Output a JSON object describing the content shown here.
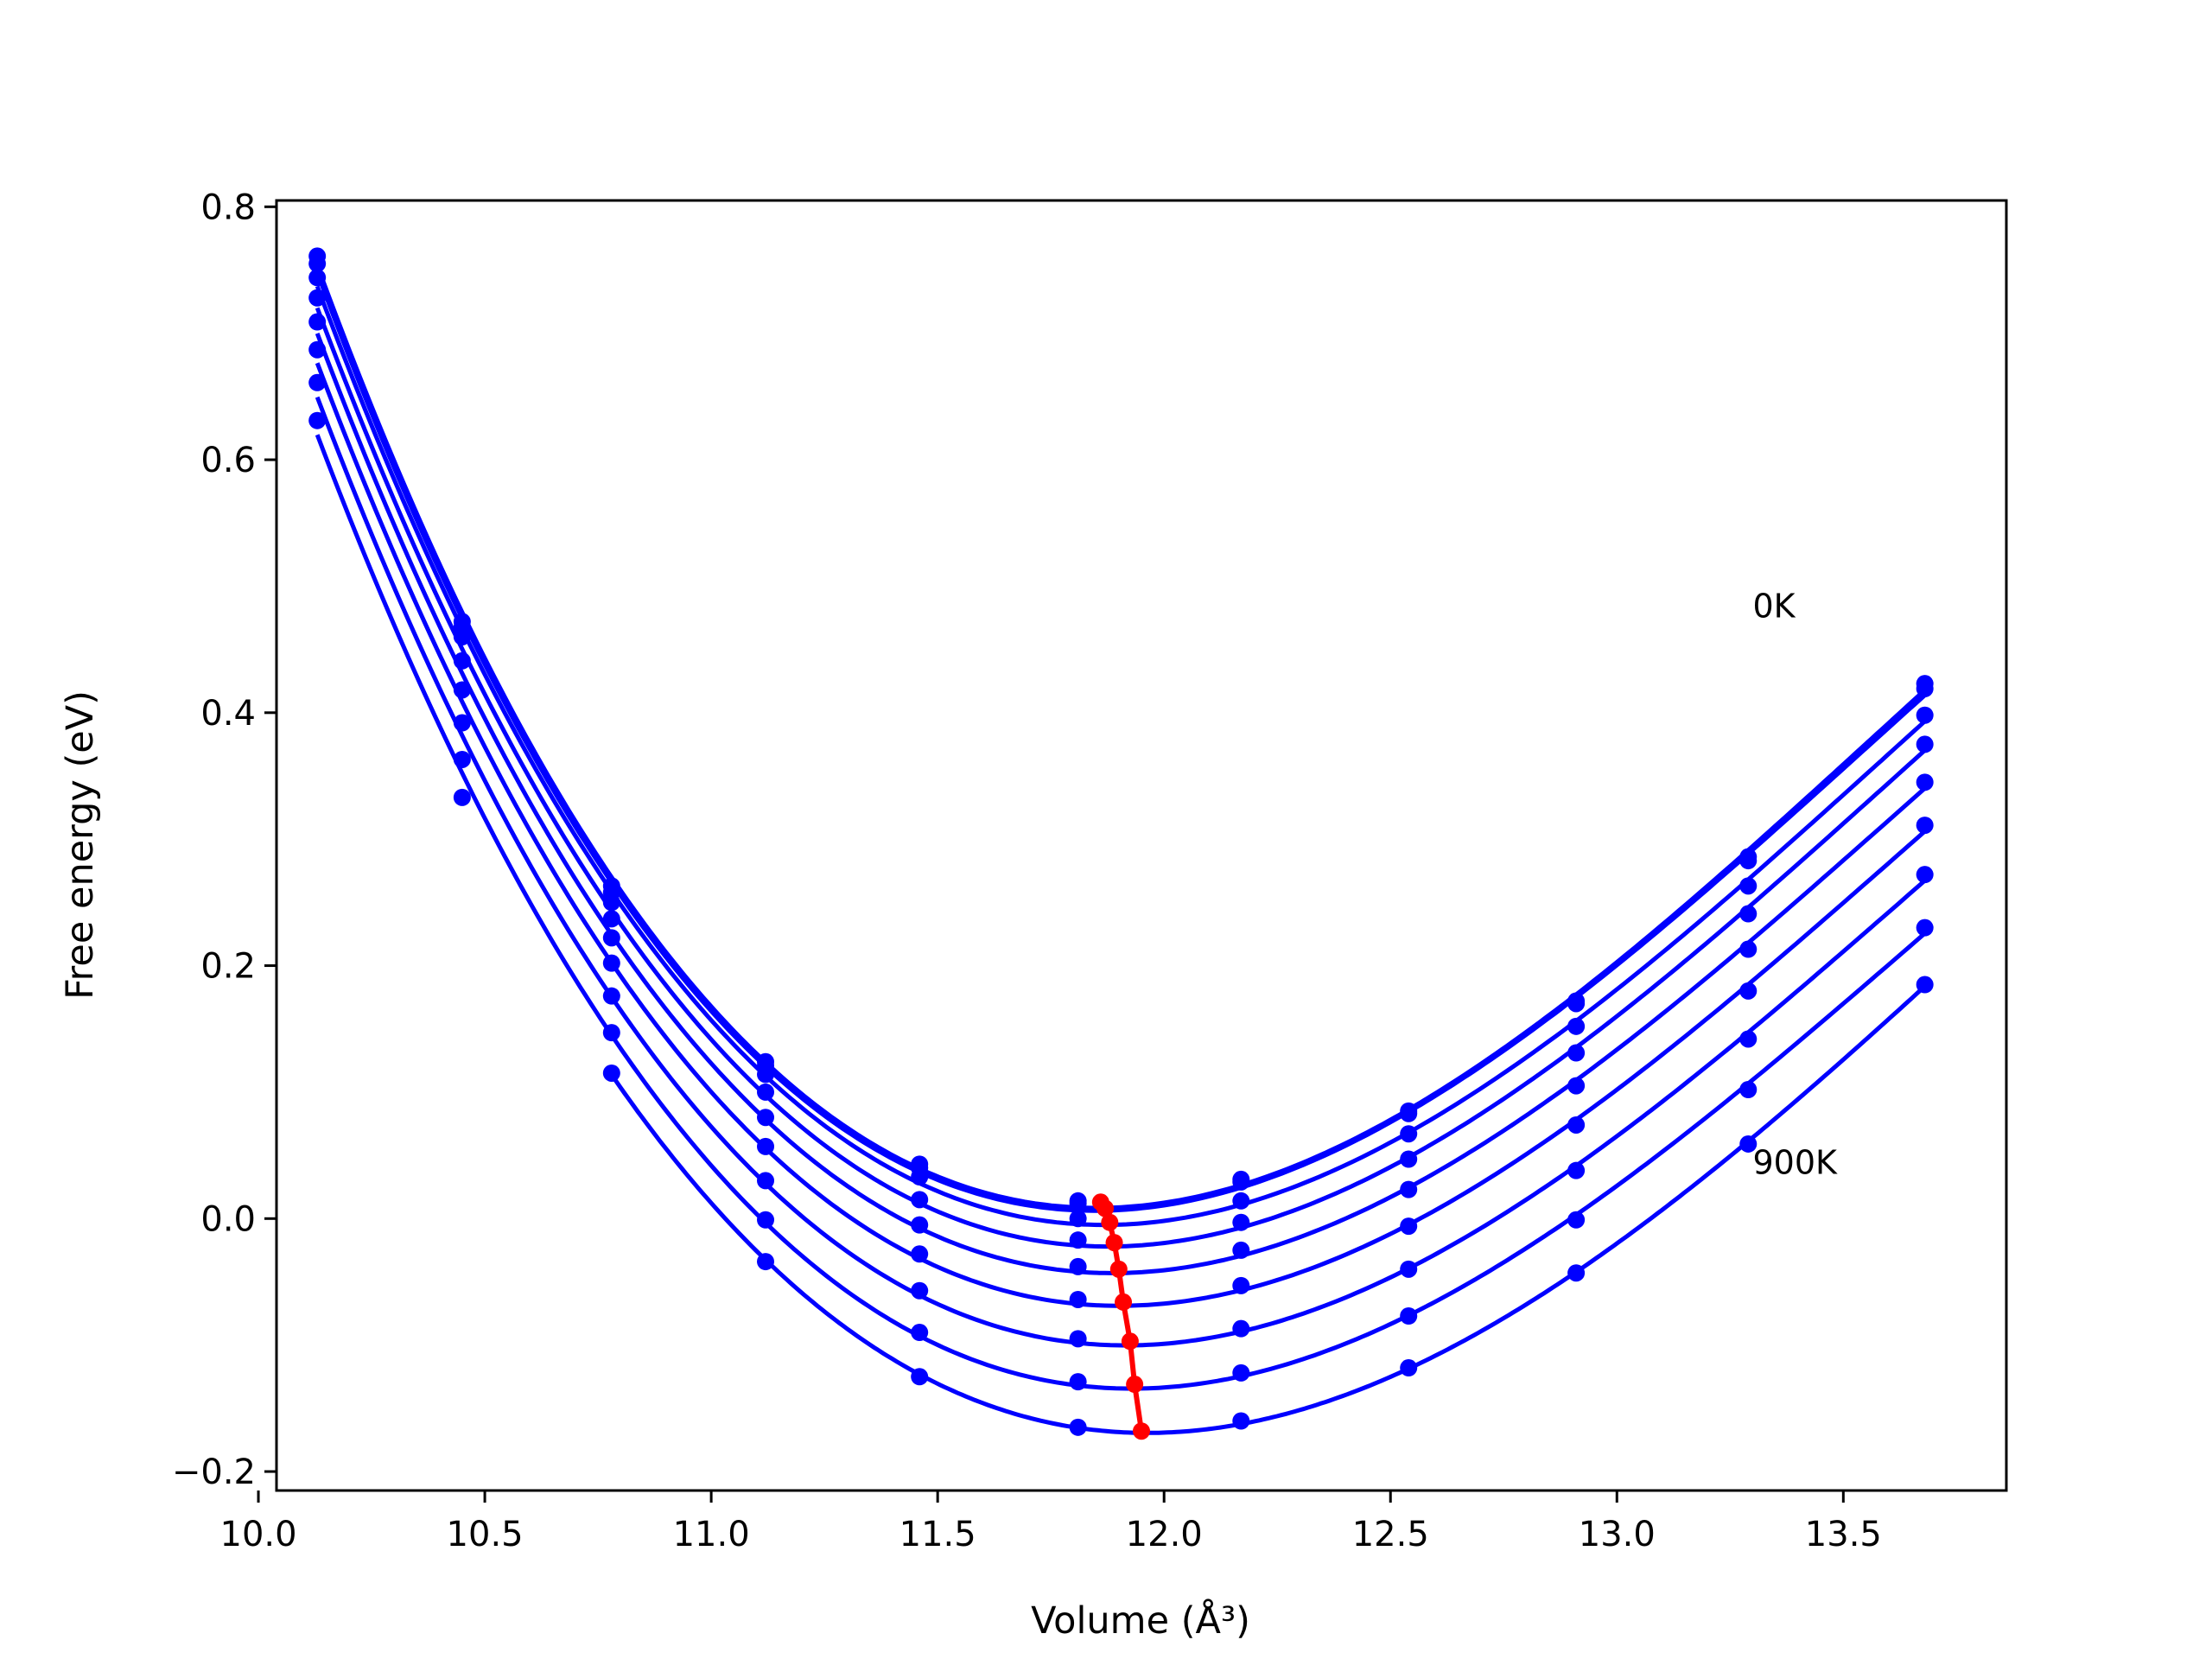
{
  "chart_data": {
    "type": "line",
    "title": "",
    "xlabel": "Volume (Å³)",
    "ylabel": "Free energy (eV)",
    "xlim": [
      10.04,
      13.86
    ],
    "ylim": [
      -0.215,
      0.805
    ],
    "xticks": [
      10.0,
      10.5,
      11.0,
      11.5,
      12.0,
      12.5,
      13.0,
      13.5
    ],
    "xtick_labels": [
      "10.0",
      "10.5",
      "11.0",
      "11.5",
      "12.0",
      "12.5",
      "13.0",
      "13.5"
    ],
    "yticks": [
      -0.2,
      0.0,
      0.2,
      0.4,
      0.6,
      0.8
    ],
    "ytick_labels": [
      "−0.2",
      "0.0",
      "0.2",
      "0.4",
      "0.6",
      "0.8"
    ],
    "grid": false,
    "legend": "none",
    "colors": {
      "curves": "#0000ff",
      "minimum_path": "#ff0000",
      "axes": "#000000"
    },
    "x": [
      10.13,
      10.45,
      10.78,
      11.12,
      11.46,
      11.81,
      12.17,
      12.54,
      12.91,
      13.29,
      13.68
    ],
    "series": [
      {
        "values": [
          0.761,
          0.472,
          0.263,
          0.124,
          0.043,
          0.014,
          0.031,
          0.085,
          0.172,
          0.286,
          0.423
        ]
      },
      {
        "values": [
          0.755,
          0.468,
          0.258,
          0.121,
          0.04,
          0.012,
          0.029,
          0.083,
          0.17,
          0.283,
          0.419
        ]
      },
      {
        "values": [
          0.744,
          0.46,
          0.25,
          0.114,
          0.033,
          0.0,
          0.014,
          0.067,
          0.152,
          0.263,
          0.398
        ]
      },
      {
        "values": [
          0.728,
          0.441,
          0.237,
          0.1,
          0.015,
          -0.017,
          -0.003,
          0.047,
          0.131,
          0.241,
          0.375
        ]
      },
      {
        "values": [
          0.709,
          0.418,
          0.222,
          0.08,
          -0.005,
          -0.038,
          -0.025,
          0.023,
          0.105,
          0.213,
          0.345
        ]
      },
      {
        "values": [
          0.687,
          0.392,
          0.202,
          0.057,
          -0.028,
          -0.064,
          -0.053,
          -0.006,
          0.074,
          0.18,
          0.311
        ]
      },
      {
        "values": [
          0.661,
          0.363,
          0.176,
          0.03,
          -0.057,
          -0.095,
          -0.087,
          -0.04,
          0.038,
          0.142,
          0.272
        ]
      },
      {
        "values": [
          0.631,
          0.333,
          0.147,
          -0.001,
          -0.09,
          -0.129,
          -0.122,
          -0.077,
          -0.001,
          0.102,
          0.23
        ]
      },
      {
        "values": [
          null,
          null,
          0.115,
          -0.034,
          -0.125,
          -0.165,
          -0.16,
          -0.118,
          -0.043,
          0.059,
          0.185
        ]
      }
    ],
    "minimum_path": {
      "x": [
        11.86,
        11.87,
        11.88,
        11.89,
        11.9,
        11.91,
        11.925,
        11.935,
        11.95
      ],
      "y": [
        0.013,
        0.008,
        -0.003,
        -0.019,
        -0.04,
        -0.066,
        -0.097,
        -0.131,
        -0.168
      ]
    },
    "annotations": [
      {
        "text": "0K",
        "x": 13.3,
        "y": 0.485
      },
      {
        "text": "900K",
        "x": 13.3,
        "y": 0.045
      }
    ]
  }
}
